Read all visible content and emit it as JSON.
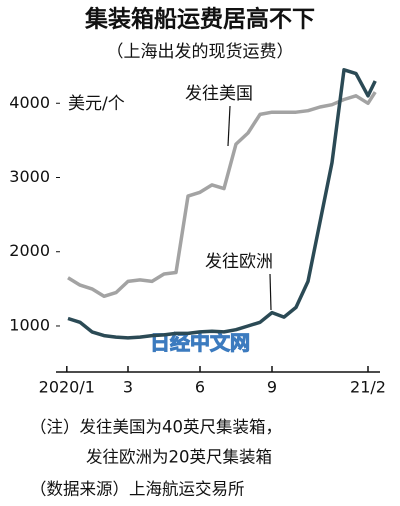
{
  "chart_data": {
    "type": "line",
    "title": "集装箱船运费居高不下",
    "subtitle": "（上海出发的现货运费）",
    "y_label": "美元/个",
    "x": [
      0.5,
      1,
      1.5,
      2,
      2.5,
      3,
      3.5,
      4,
      4.5,
      5,
      5.5,
      6,
      6.5,
      7,
      7.5,
      8,
      8.5,
      9,
      9.5,
      10,
      10.5,
      11,
      11.5,
      12,
      12.5,
      13,
      13.3
    ],
    "series": [
      {
        "name": "发往美国",
        "color": "#a3a3a3",
        "values": [
          1650,
          1550,
          1500,
          1400,
          1450,
          1600,
          1620,
          1600,
          1700,
          1720,
          2750,
          2800,
          2900,
          2850,
          3450,
          3600,
          3850,
          3880,
          3880,
          3880,
          3900,
          3950,
          3980,
          4050,
          4100,
          4000,
          4150
        ]
      },
      {
        "name": "发往欧洲",
        "color": "#2b4a55",
        "values": [
          1100,
          1050,
          920,
          870,
          850,
          840,
          850,
          870,
          880,
          900,
          900,
          920,
          930,
          920,
          950,
          1000,
          1050,
          1180,
          1120,
          1250,
          1600,
          2400,
          3200,
          4450,
          4400,
          4100,
          4300
        ]
      }
    ],
    "xlim": [
      0,
      13.5
    ],
    "xticks": [
      {
        "value": 0.45,
        "label": "2020/1"
      },
      3,
      6,
      9,
      {
        "value": 13,
        "label": "21/2"
      }
    ],
    "ylim": [
      380,
      4650
    ],
    "yticks": [
      1000,
      2000,
      3000,
      4000
    ],
    "watermark": "日经中文网",
    "notes": [
      "（注）发往美国为40英尺集装箱，",
      "发往欧洲为20英尺集装箱",
      "（数据来源）上海航运交易所"
    ]
  }
}
